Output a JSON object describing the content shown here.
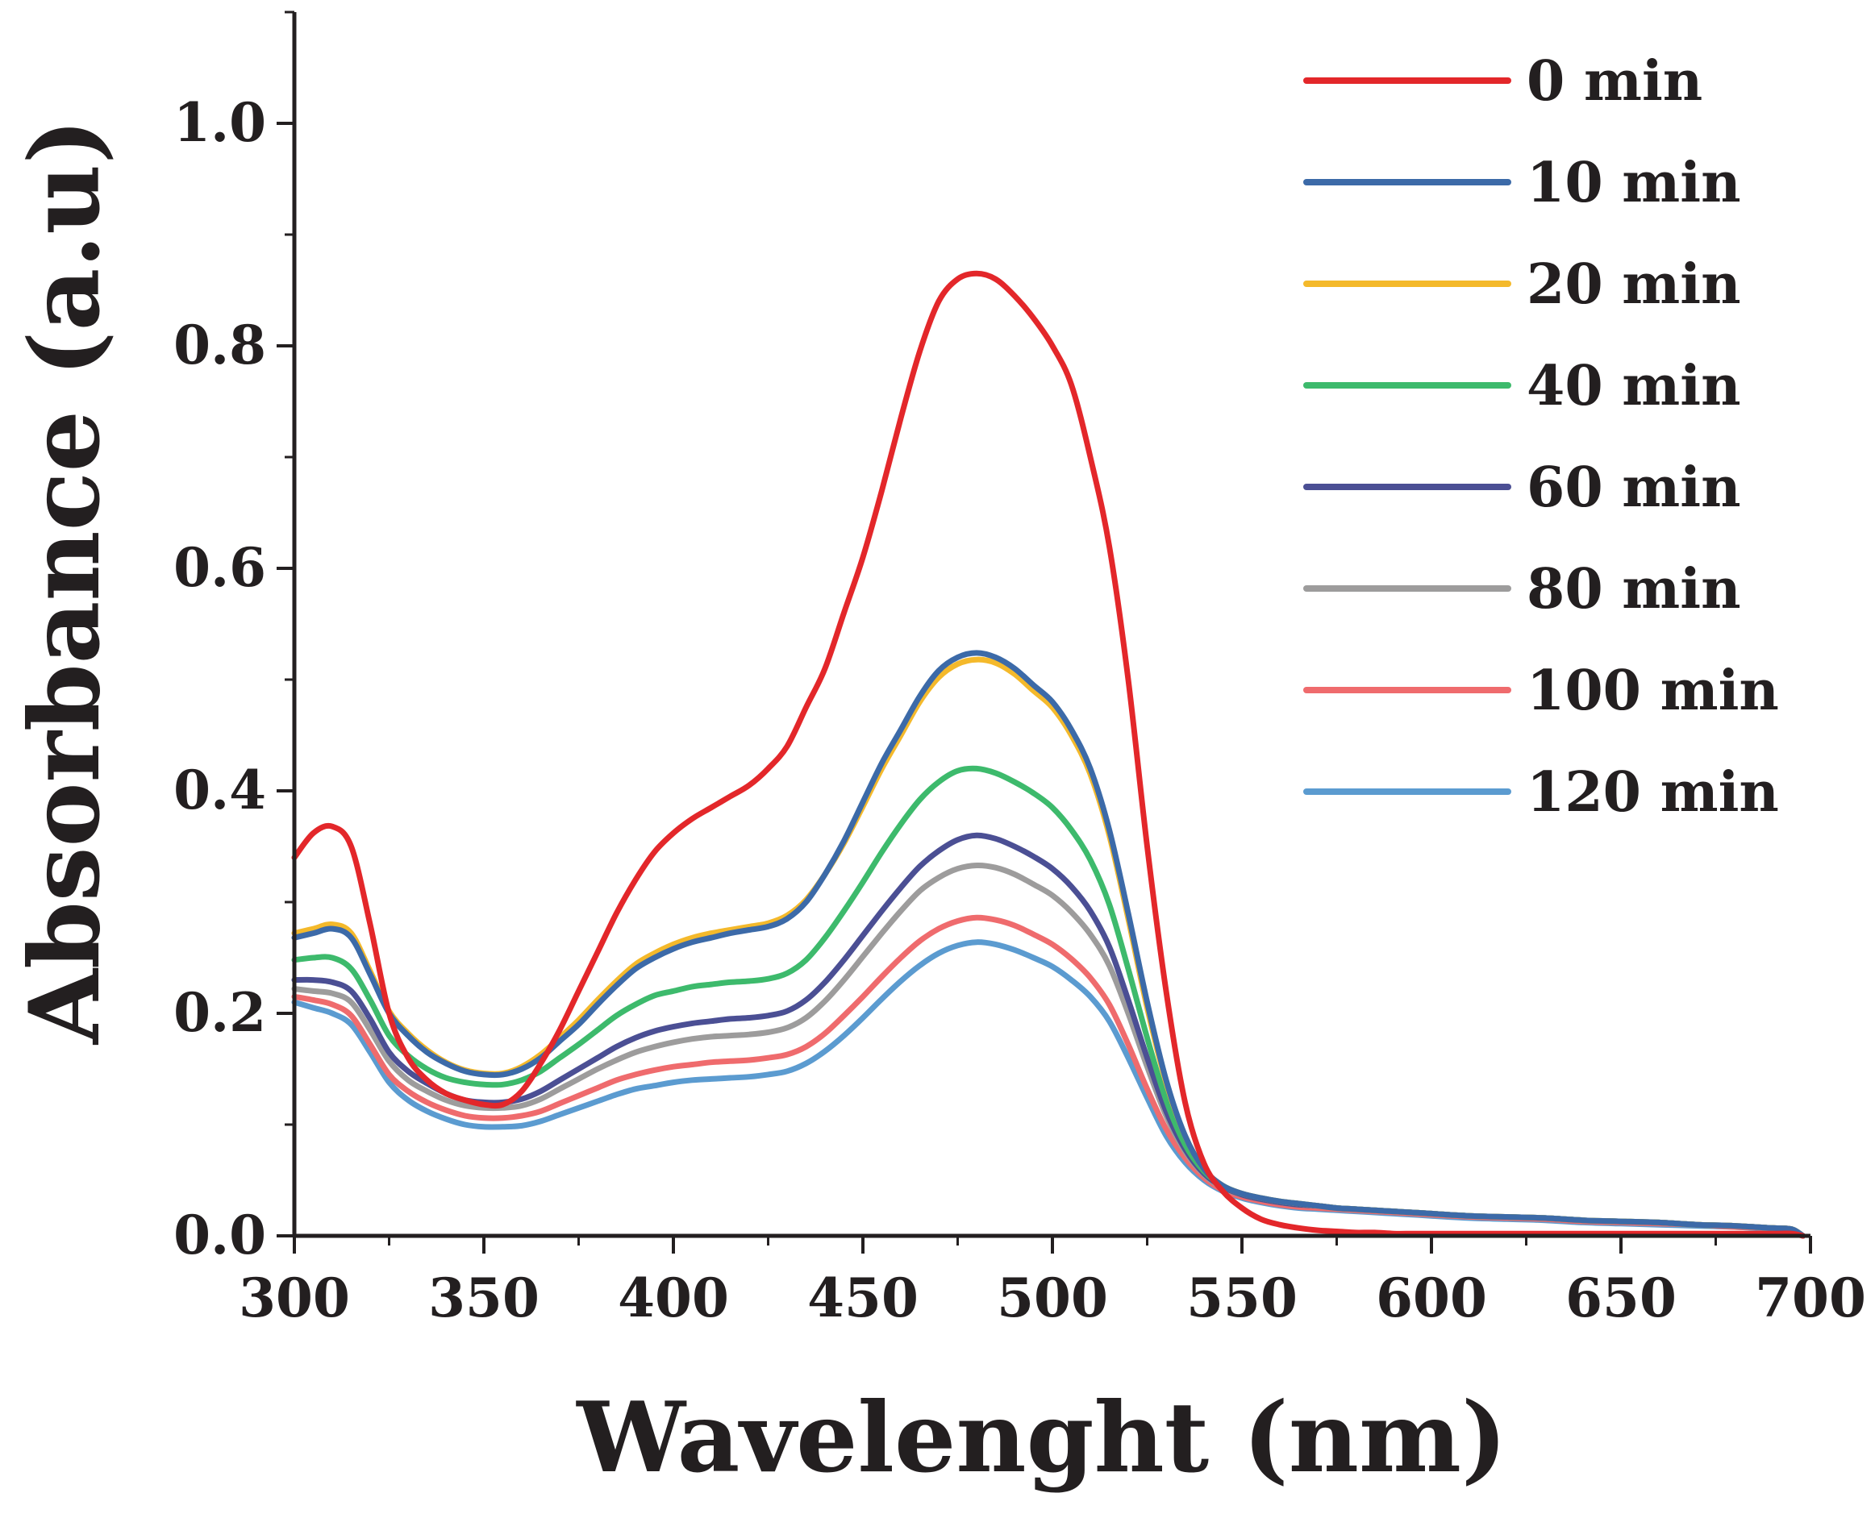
{
  "chart_data": {
    "type": "line",
    "title": "",
    "xlabel": "Wavelenght (nm)",
    "ylabel": "Absorbance (a.u)",
    "xlim": [
      300,
      700
    ],
    "ylim": [
      0.0,
      1.1
    ],
    "xticks": [
      300,
      350,
      400,
      450,
      500,
      550,
      600,
      650,
      700
    ],
    "xtick_labels": [
      "300",
      "350",
      "400",
      "450",
      "500",
      "550",
      "600",
      "650",
      "700"
    ],
    "yticks": [
      0.0,
      0.2,
      0.4,
      0.6,
      0.8,
      1.0
    ],
    "ytick_labels": [
      "0.0",
      "0.2",
      "0.4",
      "0.6",
      "0.8",
      "1.0"
    ],
    "grid": false,
    "legend_position": "top-right",
    "x": [
      300,
      305,
      310,
      315,
      320,
      325,
      330,
      335,
      340,
      345,
      350,
      355,
      360,
      365,
      370,
      375,
      380,
      385,
      390,
      395,
      400,
      405,
      410,
      415,
      420,
      425,
      430,
      435,
      440,
      445,
      450,
      455,
      460,
      465,
      470,
      475,
      480,
      485,
      490,
      495,
      500,
      505,
      510,
      515,
      520,
      525,
      530,
      535,
      540,
      545,
      550,
      555,
      560,
      565,
      570,
      575,
      580,
      585,
      590,
      595,
      600,
      610,
      620,
      630,
      640,
      650,
      660,
      670,
      680,
      690,
      695,
      698
    ],
    "series": [
      {
        "name": "0 min",
        "color": "#e3272a",
        "values": [
          0.34,
          0.362,
          0.368,
          0.35,
          0.28,
          0.2,
          0.16,
          0.14,
          0.128,
          0.122,
          0.118,
          0.118,
          0.13,
          0.155,
          0.185,
          0.22,
          0.255,
          0.29,
          0.32,
          0.345,
          0.362,
          0.375,
          0.385,
          0.395,
          0.405,
          0.42,
          0.44,
          0.475,
          0.51,
          0.56,
          0.61,
          0.67,
          0.735,
          0.795,
          0.84,
          0.86,
          0.865,
          0.86,
          0.845,
          0.825,
          0.8,
          0.765,
          0.7,
          0.62,
          0.5,
          0.35,
          0.22,
          0.12,
          0.065,
          0.04,
          0.025,
          0.015,
          0.01,
          0.007,
          0.005,
          0.004,
          0.003,
          0.003,
          0.002,
          0.002,
          0.002,
          0.002,
          0.002,
          0.002,
          0.002,
          0.002,
          0.002,
          0.002,
          0.002,
          0.002,
          0.002,
          0.0
        ]
      },
      {
        "name": "10 min",
        "color": "#3c6aa8",
        "values": [
          0.268,
          0.272,
          0.276,
          0.268,
          0.235,
          0.2,
          0.18,
          0.165,
          0.155,
          0.148,
          0.145,
          0.145,
          0.15,
          0.16,
          0.175,
          0.19,
          0.208,
          0.225,
          0.24,
          0.25,
          0.258,
          0.264,
          0.268,
          0.272,
          0.275,
          0.278,
          0.285,
          0.3,
          0.325,
          0.355,
          0.39,
          0.425,
          0.455,
          0.485,
          0.508,
          0.52,
          0.524,
          0.52,
          0.51,
          0.495,
          0.48,
          0.455,
          0.42,
          0.365,
          0.29,
          0.21,
          0.14,
          0.09,
          0.06,
          0.045,
          0.038,
          0.034,
          0.031,
          0.029,
          0.027,
          0.025,
          0.024,
          0.023,
          0.022,
          0.021,
          0.02,
          0.018,
          0.017,
          0.016,
          0.014,
          0.013,
          0.012,
          0.01,
          0.009,
          0.007,
          0.006,
          0.0
        ]
      },
      {
        "name": "20 min",
        "color": "#f4b92b",
        "values": [
          0.272,
          0.276,
          0.28,
          0.272,
          0.238,
          0.202,
          0.182,
          0.167,
          0.156,
          0.149,
          0.146,
          0.146,
          0.152,
          0.163,
          0.178,
          0.194,
          0.212,
          0.229,
          0.244,
          0.254,
          0.262,
          0.268,
          0.272,
          0.275,
          0.278,
          0.281,
          0.288,
          0.302,
          0.325,
          0.353,
          0.386,
          0.42,
          0.45,
          0.48,
          0.502,
          0.514,
          0.518,
          0.515,
          0.505,
          0.49,
          0.475,
          0.45,
          0.415,
          0.36,
          0.285,
          0.205,
          0.138,
          0.09,
          0.06,
          0.045,
          0.038,
          0.034,
          0.031,
          0.029,
          0.027,
          0.025,
          0.024,
          0.023,
          0.022,
          0.021,
          0.02,
          0.018,
          0.017,
          0.016,
          0.014,
          0.013,
          0.012,
          0.01,
          0.009,
          0.007,
          0.006,
          0.0
        ]
      },
      {
        "name": "40 min",
        "color": "#3dba6c",
        "values": [
          0.248,
          0.25,
          0.25,
          0.24,
          0.212,
          0.18,
          0.162,
          0.15,
          0.142,
          0.138,
          0.136,
          0.136,
          0.14,
          0.148,
          0.16,
          0.172,
          0.185,
          0.198,
          0.208,
          0.216,
          0.22,
          0.224,
          0.226,
          0.228,
          0.229,
          0.231,
          0.236,
          0.248,
          0.268,
          0.292,
          0.318,
          0.345,
          0.37,
          0.392,
          0.408,
          0.418,
          0.42,
          0.416,
          0.408,
          0.398,
          0.385,
          0.365,
          0.338,
          0.298,
          0.24,
          0.178,
          0.122,
          0.082,
          0.058,
          0.045,
          0.038,
          0.034,
          0.031,
          0.029,
          0.027,
          0.025,
          0.024,
          0.023,
          0.022,
          0.021,
          0.02,
          0.018,
          0.017,
          0.016,
          0.014,
          0.013,
          0.012,
          0.01,
          0.009,
          0.007,
          0.006,
          0.0
        ]
      },
      {
        "name": "60 min",
        "color": "#4b4f94",
        "values": [
          0.23,
          0.23,
          0.228,
          0.22,
          0.195,
          0.165,
          0.148,
          0.137,
          0.128,
          0.122,
          0.12,
          0.12,
          0.123,
          0.13,
          0.14,
          0.15,
          0.16,
          0.17,
          0.178,
          0.184,
          0.188,
          0.191,
          0.193,
          0.195,
          0.196,
          0.198,
          0.202,
          0.212,
          0.228,
          0.248,
          0.27,
          0.292,
          0.313,
          0.332,
          0.346,
          0.356,
          0.36,
          0.357,
          0.35,
          0.341,
          0.33,
          0.314,
          0.292,
          0.26,
          0.212,
          0.16,
          0.112,
          0.078,
          0.056,
          0.044,
          0.037,
          0.033,
          0.03,
          0.028,
          0.027,
          0.025,
          0.024,
          0.023,
          0.022,
          0.021,
          0.02,
          0.018,
          0.017,
          0.016,
          0.014,
          0.013,
          0.012,
          0.01,
          0.009,
          0.007,
          0.006,
          0.0
        ]
      },
      {
        "name": "80 min",
        "color": "#9d9c9c",
        "values": [
          0.222,
          0.22,
          0.218,
          0.21,
          0.185,
          0.157,
          0.14,
          0.13,
          0.122,
          0.117,
          0.115,
          0.115,
          0.117,
          0.123,
          0.132,
          0.141,
          0.15,
          0.158,
          0.165,
          0.17,
          0.174,
          0.177,
          0.179,
          0.18,
          0.181,
          0.183,
          0.187,
          0.196,
          0.211,
          0.23,
          0.251,
          0.272,
          0.292,
          0.31,
          0.322,
          0.33,
          0.333,
          0.331,
          0.325,
          0.316,
          0.306,
          0.291,
          0.271,
          0.243,
          0.2,
          0.152,
          0.108,
          0.076,
          0.055,
          0.043,
          0.037,
          0.033,
          0.03,
          0.028,
          0.027,
          0.025,
          0.024,
          0.023,
          0.022,
          0.021,
          0.02,
          0.018,
          0.017,
          0.016,
          0.014,
          0.013,
          0.012,
          0.01,
          0.009,
          0.007,
          0.006,
          0.0
        ]
      },
      {
        "name": "100 min",
        "color": "#ef6b6d",
        "values": [
          0.215,
          0.212,
          0.208,
          0.198,
          0.172,
          0.145,
          0.13,
          0.12,
          0.113,
          0.108,
          0.106,
          0.106,
          0.108,
          0.112,
          0.119,
          0.126,
          0.133,
          0.14,
          0.145,
          0.149,
          0.152,
          0.154,
          0.156,
          0.157,
          0.158,
          0.16,
          0.163,
          0.17,
          0.182,
          0.198,
          0.215,
          0.233,
          0.25,
          0.265,
          0.276,
          0.283,
          0.286,
          0.284,
          0.279,
          0.271,
          0.262,
          0.249,
          0.232,
          0.208,
          0.172,
          0.132,
          0.096,
          0.07,
          0.052,
          0.041,
          0.035,
          0.031,
          0.028,
          0.026,
          0.025,
          0.024,
          0.023,
          0.022,
          0.021,
          0.02,
          0.019,
          0.017,
          0.016,
          0.015,
          0.013,
          0.012,
          0.011,
          0.01,
          0.008,
          0.007,
          0.006,
          0.0
        ]
      },
      {
        "name": "120 min",
        "color": "#5b9bd0",
        "values": [
          0.21,
          0.205,
          0.2,
          0.19,
          0.165,
          0.138,
          0.122,
          0.112,
          0.105,
          0.1,
          0.098,
          0.098,
          0.099,
          0.103,
          0.109,
          0.115,
          0.121,
          0.127,
          0.132,
          0.135,
          0.138,
          0.14,
          0.141,
          0.142,
          0.143,
          0.145,
          0.148,
          0.155,
          0.166,
          0.18,
          0.196,
          0.213,
          0.229,
          0.243,
          0.254,
          0.261,
          0.264,
          0.262,
          0.257,
          0.25,
          0.242,
          0.23,
          0.215,
          0.193,
          0.16,
          0.124,
          0.09,
          0.066,
          0.05,
          0.04,
          0.034,
          0.03,
          0.027,
          0.025,
          0.024,
          0.023,
          0.022,
          0.021,
          0.02,
          0.019,
          0.018,
          0.016,
          0.015,
          0.014,
          0.012,
          0.011,
          0.01,
          0.009,
          0.008,
          0.006,
          0.005,
          0.0
        ]
      }
    ]
  }
}
